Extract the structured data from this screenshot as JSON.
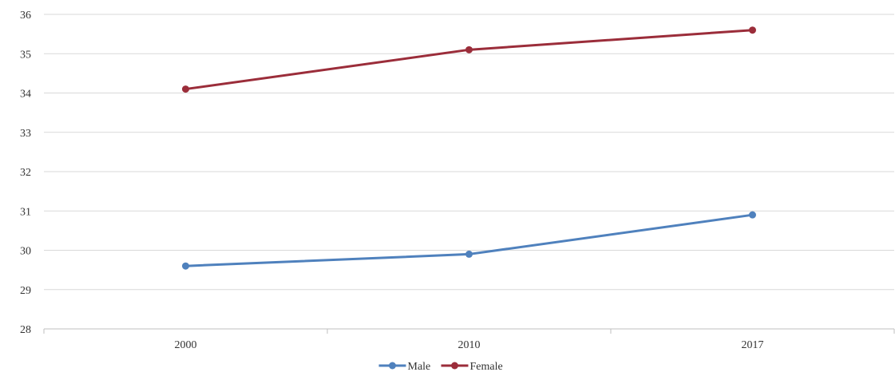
{
  "chart_data": {
    "type": "line",
    "title": "",
    "xlabel": "",
    "ylabel": "",
    "categories": [
      "2000",
      "2010",
      "2017"
    ],
    "ylim": [
      28,
      36
    ],
    "yticks": [
      "28",
      "29",
      "30",
      "31",
      "32",
      "33",
      "34",
      "35",
      "36"
    ],
    "grid": true,
    "legend_position": "bottom",
    "series": [
      {
        "name": "Male",
        "color": "#4f81bd",
        "values": [
          29.6,
          29.9,
          30.9
        ]
      },
      {
        "name": "Female",
        "color": "#9b2d3a",
        "values": [
          34.1,
          35.1,
          35.6
        ]
      }
    ]
  }
}
